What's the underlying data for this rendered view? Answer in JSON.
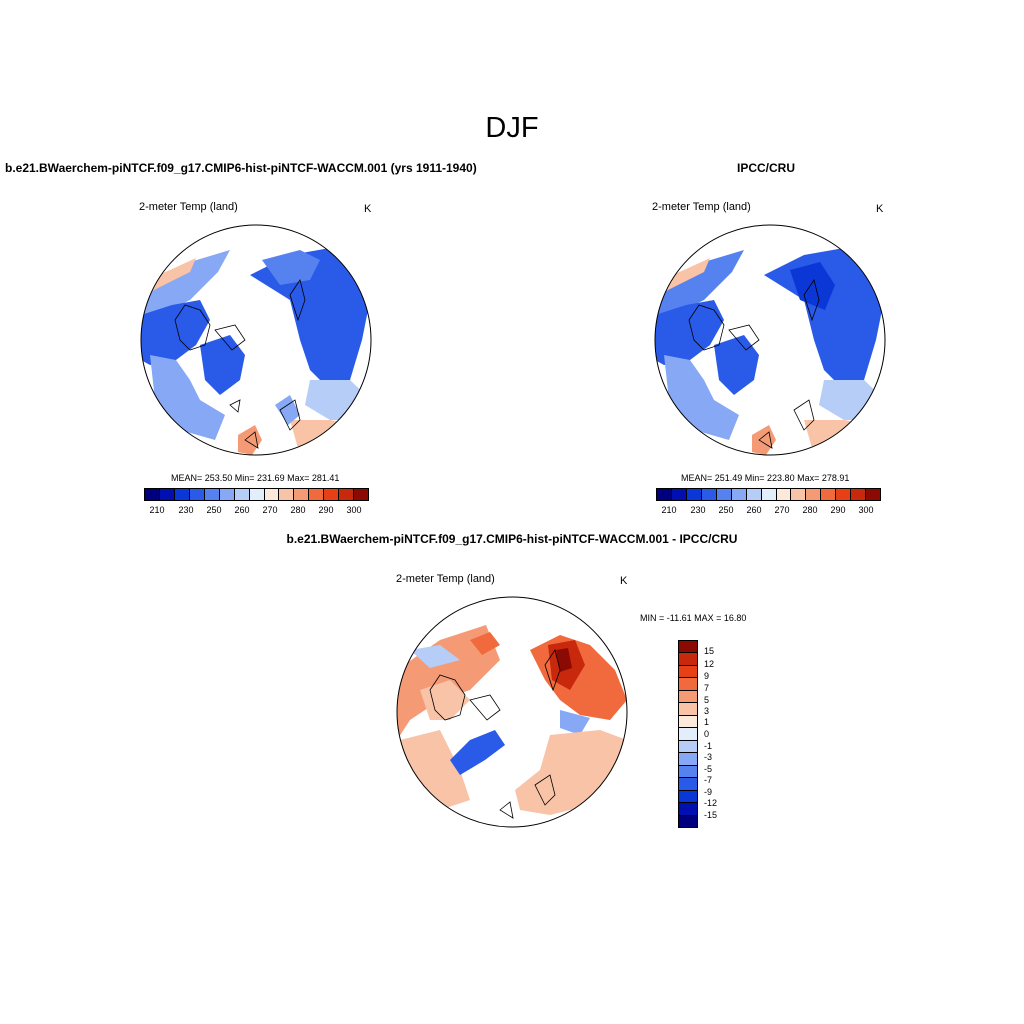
{
  "figure": {
    "title": "DJF"
  },
  "panels": [
    {
      "title": "b.e21.BWaerchem-piNTCF.f09_g17.CMIP6-hist-piNTCF-WACCM.001 (yrs 1911-1940)",
      "variable": "2-meter Temp (land)",
      "units": "K",
      "stats": "MEAN= 253.50  Min= 231.69  Max= 281.41"
    },
    {
      "title": "IPCC/CRU",
      "variable": "2-meter Temp (land)",
      "units": "K",
      "stats": "MEAN= 251.49  Min= 223.80  Max= 278.91"
    },
    {
      "title": "b.e21.BWaerchem-piNTCF.f09_g17.CMIP6-hist-piNTCF-WACCM.001 - IPCC/CRU",
      "variable": "2-meter Temp (land)",
      "units": "K",
      "stats": "MIN = -11.61 MAX =  16.80"
    }
  ],
  "abs_colorbar": {
    "colors": [
      "#00007f",
      "#0010b0",
      "#0a37d6",
      "#2a5ae8",
      "#5682f0",
      "#86a8f5",
      "#b6cdf8",
      "#e2eefc",
      "#fde8dc",
      "#f8c3a6",
      "#f49b76",
      "#f06a3d",
      "#e73f16",
      "#c8280c",
      "#8c0a04"
    ],
    "tick_labels": [
      "210",
      "230",
      "250",
      "260",
      "270",
      "280",
      "290",
      "300"
    ]
  },
  "diff_colorbar": {
    "colors": [
      "#8c0a04",
      "#c8280c",
      "#e73f16",
      "#f06a3d",
      "#f49b76",
      "#f8c3a6",
      "#fde8dc",
      "#e2eefc",
      "#b6cdf8",
      "#86a8f5",
      "#5682f0",
      "#2a5ae8",
      "#0a37d6",
      "#0010b0",
      "#00007f"
    ],
    "tick_labels": [
      "15",
      "12",
      "9",
      "7",
      "5",
      "3",
      "1",
      "0",
      "-1",
      "-3",
      "-5",
      "-7",
      "-9",
      "-12",
      "-15"
    ]
  }
}
